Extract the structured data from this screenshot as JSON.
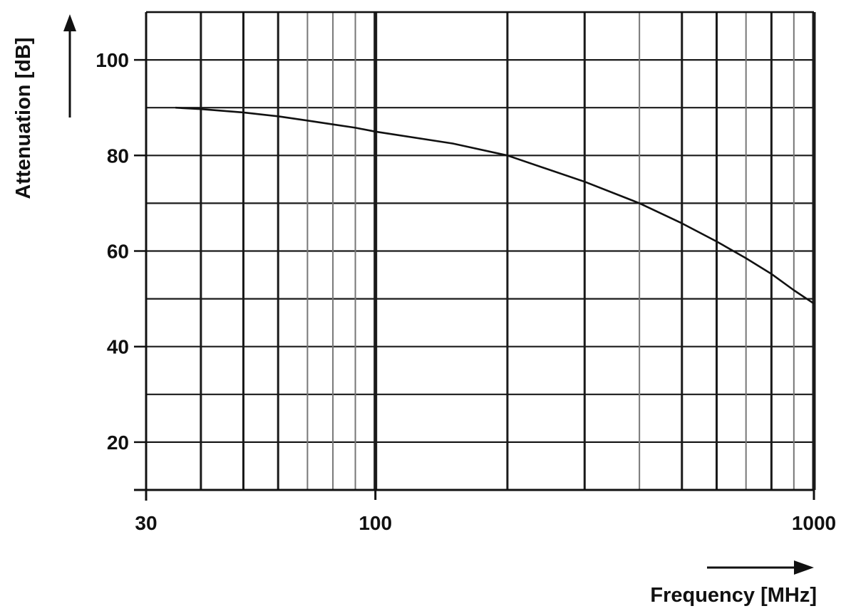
{
  "chart_data": {
    "type": "line",
    "xlabel": "Frequency [MHz]",
    "ylabel": "Attenuation [dB]",
    "x_scale": "log",
    "xlim": [
      30,
      1000
    ],
    "ylim": [
      10,
      110
    ],
    "x_ticks": [
      {
        "value": 30,
        "label": "30"
      },
      {
        "value": 100,
        "label": "100"
      },
      {
        "value": 1000,
        "label": "1000"
      }
    ],
    "y_ticks": [
      {
        "value": 20,
        "label": "20"
      },
      {
        "value": 40,
        "label": "40"
      },
      {
        "value": 60,
        "label": "60"
      },
      {
        "value": 80,
        "label": "80"
      },
      {
        "value": 100,
        "label": "100"
      }
    ],
    "grid": true,
    "x_gridlines": [
      40,
      50,
      60,
      70,
      80,
      90,
      100,
      200,
      300,
      400,
      500,
      600,
      700,
      800,
      900,
      1000
    ],
    "y_gridlines": [
      10,
      20,
      30,
      40,
      50,
      60,
      70,
      80,
      90,
      100,
      110
    ],
    "series": [
      {
        "x": [
          35,
          40,
          50,
          60,
          70,
          80,
          90,
          100,
          150,
          200,
          300,
          400,
          500,
          600,
          700,
          800,
          900,
          1000
        ],
        "y": [
          90,
          89.7,
          89,
          88.2,
          87.3,
          86.5,
          85.8,
          85,
          82.5,
          80,
          74.5,
          70,
          65.8,
          62,
          58.5,
          55.2,
          51.8,
          49
        ],
        "color": "#111111"
      }
    ]
  }
}
